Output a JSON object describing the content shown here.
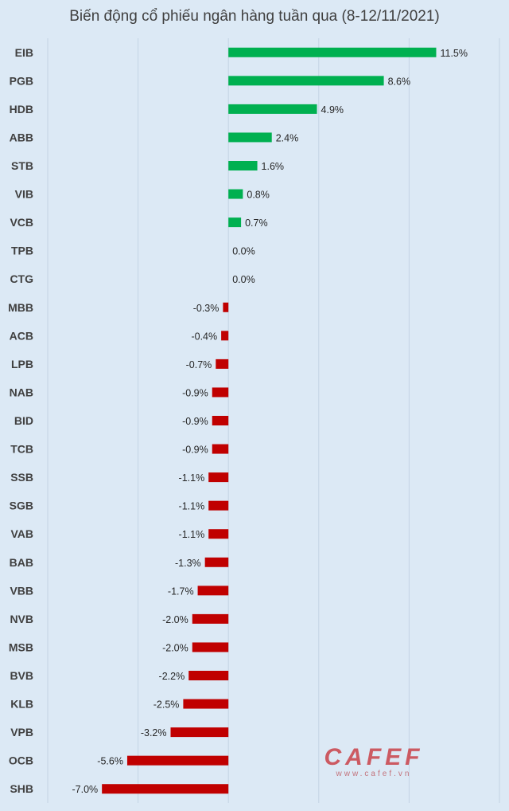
{
  "chart_data": {
    "type": "bar",
    "orientation": "horizontal",
    "title": "Biến động cổ phiếu ngân hàng tuần qua (8-12/11/2021)",
    "categories": [
      "EIB",
      "PGB",
      "HDB",
      "ABB",
      "STB",
      "VIB",
      "VCB",
      "TPB",
      "CTG",
      "MBB",
      "ACB",
      "LPB",
      "NAB",
      "BID",
      "TCB",
      "SSB",
      "SGB",
      "VAB",
      "BAB",
      "VBB",
      "NVB",
      "MSB",
      "BVB",
      "KLB",
      "VPB",
      "OCB",
      "SHB"
    ],
    "values": [
      11.5,
      8.6,
      4.9,
      2.4,
      1.6,
      0.8,
      0.7,
      0.0,
      0.0,
      -0.3,
      -0.4,
      -0.7,
      -0.9,
      -0.9,
      -0.9,
      -1.1,
      -1.1,
      -1.1,
      -1.3,
      -1.7,
      -2.0,
      -2.0,
      -2.2,
      -2.5,
      -3.2,
      -5.6,
      -7.0
    ],
    "value_labels": [
      "11.5%",
      "8.6%",
      "4.9%",
      "2.4%",
      "1.6%",
      "0.8%",
      "0.7%",
      "0.0%",
      "0.0%",
      "-0.3%",
      "-0.4%",
      "-0.7%",
      "-0.9%",
      "-0.9%",
      "-0.9%",
      "-1.1%",
      "-1.1%",
      "-1.1%",
      "-1.3%",
      "-1.7%",
      "-2.0%",
      "-2.0%",
      "-2.2%",
      "-2.5%",
      "-3.2%",
      "-5.6%",
      "-7.0%"
    ],
    "xlim": [
      -10,
      15
    ],
    "grid": true,
    "colors": {
      "positive": "#00b050",
      "negative": "#c00000",
      "grid": "#c4d4e4"
    }
  },
  "watermark": {
    "brand": "CAFEF",
    "site": "www.cafef.vn"
  }
}
